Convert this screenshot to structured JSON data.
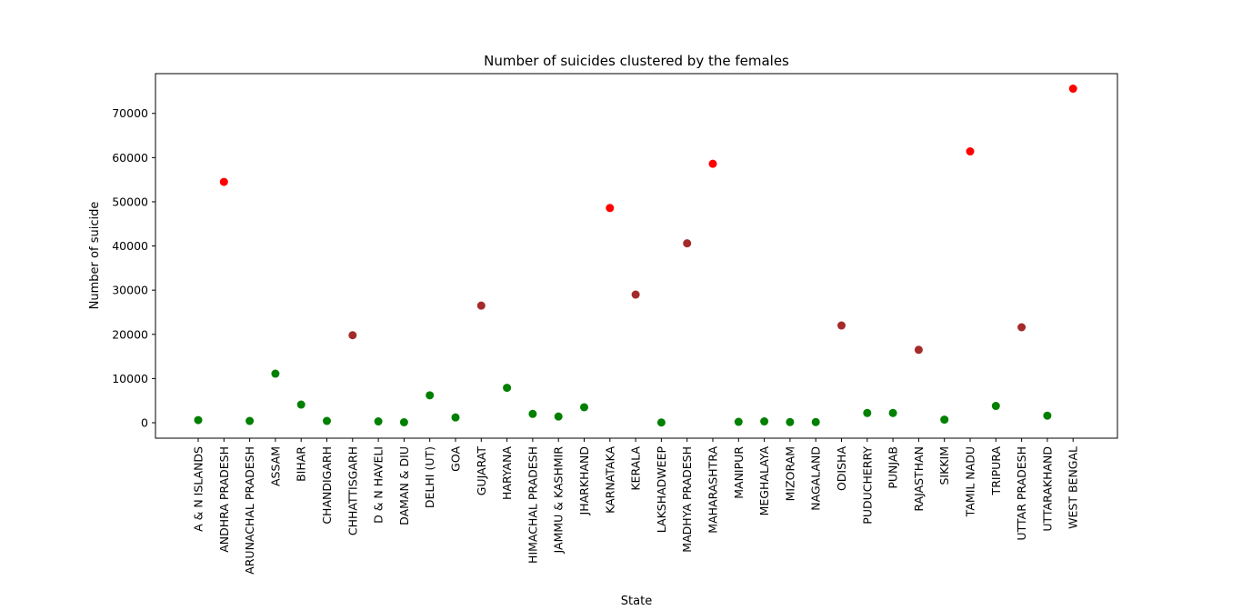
{
  "chart_data": {
    "type": "scatter",
    "title": "Number of suicides clustered by the females",
    "xlabel": "State",
    "ylabel": "Number of suicide",
    "ylim": [
      -3500,
      79000
    ],
    "yticks": [
      0,
      10000,
      20000,
      30000,
      40000,
      50000,
      60000,
      70000
    ],
    "grid": false,
    "colors": {
      "high": "#ff0000",
      "medium": "#a52a2a",
      "low": "#008000"
    },
    "categories": [
      "A & N ISLANDS",
      "ANDHRA PRADESH",
      "ARUNACHAL PRADESH",
      "ASSAM",
      "BIHAR",
      "CHANDIGARH",
      "CHHATTISGARH",
      "D & N HAVELI",
      "DAMAN & DIU",
      "DELHI (UT)",
      "GOA",
      "GUJARAT",
      "HARYANA",
      "HIMACHAL PRADESH",
      "JAMMU & KASHMIR",
      "JHARKHAND",
      "KARNATAKA",
      "KERALA",
      "LAKSHADWEEP",
      "MADHYA PRADESH",
      "MAHARASHTRA",
      "MANIPUR",
      "MEGHALAYA",
      "MIZORAM",
      "NAGALAND",
      "ODISHA",
      "PUDUCHERRY",
      "PUNJAB",
      "RAJASTHAN",
      "SIKKIM",
      "TAMIL NADU",
      "TRIPURA",
      "UTTAR PRADESH",
      "UTTARAKHAND",
      "WEST BENGAL"
    ],
    "values": [
      600,
      54500,
      400,
      11100,
      4100,
      400,
      19800,
      300,
      100,
      6200,
      1200,
      26500,
      7900,
      2000,
      1400,
      3500,
      48600,
      29000,
      50,
      40600,
      58600,
      200,
      300,
      150,
      150,
      22000,
      2200,
      2200,
      16500,
      700,
      61400,
      3800,
      21600,
      1600,
      75600
    ],
    "clusters": [
      "low",
      "high",
      "low",
      "low",
      "low",
      "low",
      "medium",
      "low",
      "low",
      "low",
      "low",
      "medium",
      "low",
      "low",
      "low",
      "low",
      "high",
      "medium",
      "low",
      "medium",
      "high",
      "low",
      "low",
      "low",
      "low",
      "medium",
      "low",
      "low",
      "medium",
      "low",
      "high",
      "low",
      "medium",
      "low",
      "high"
    ]
  }
}
